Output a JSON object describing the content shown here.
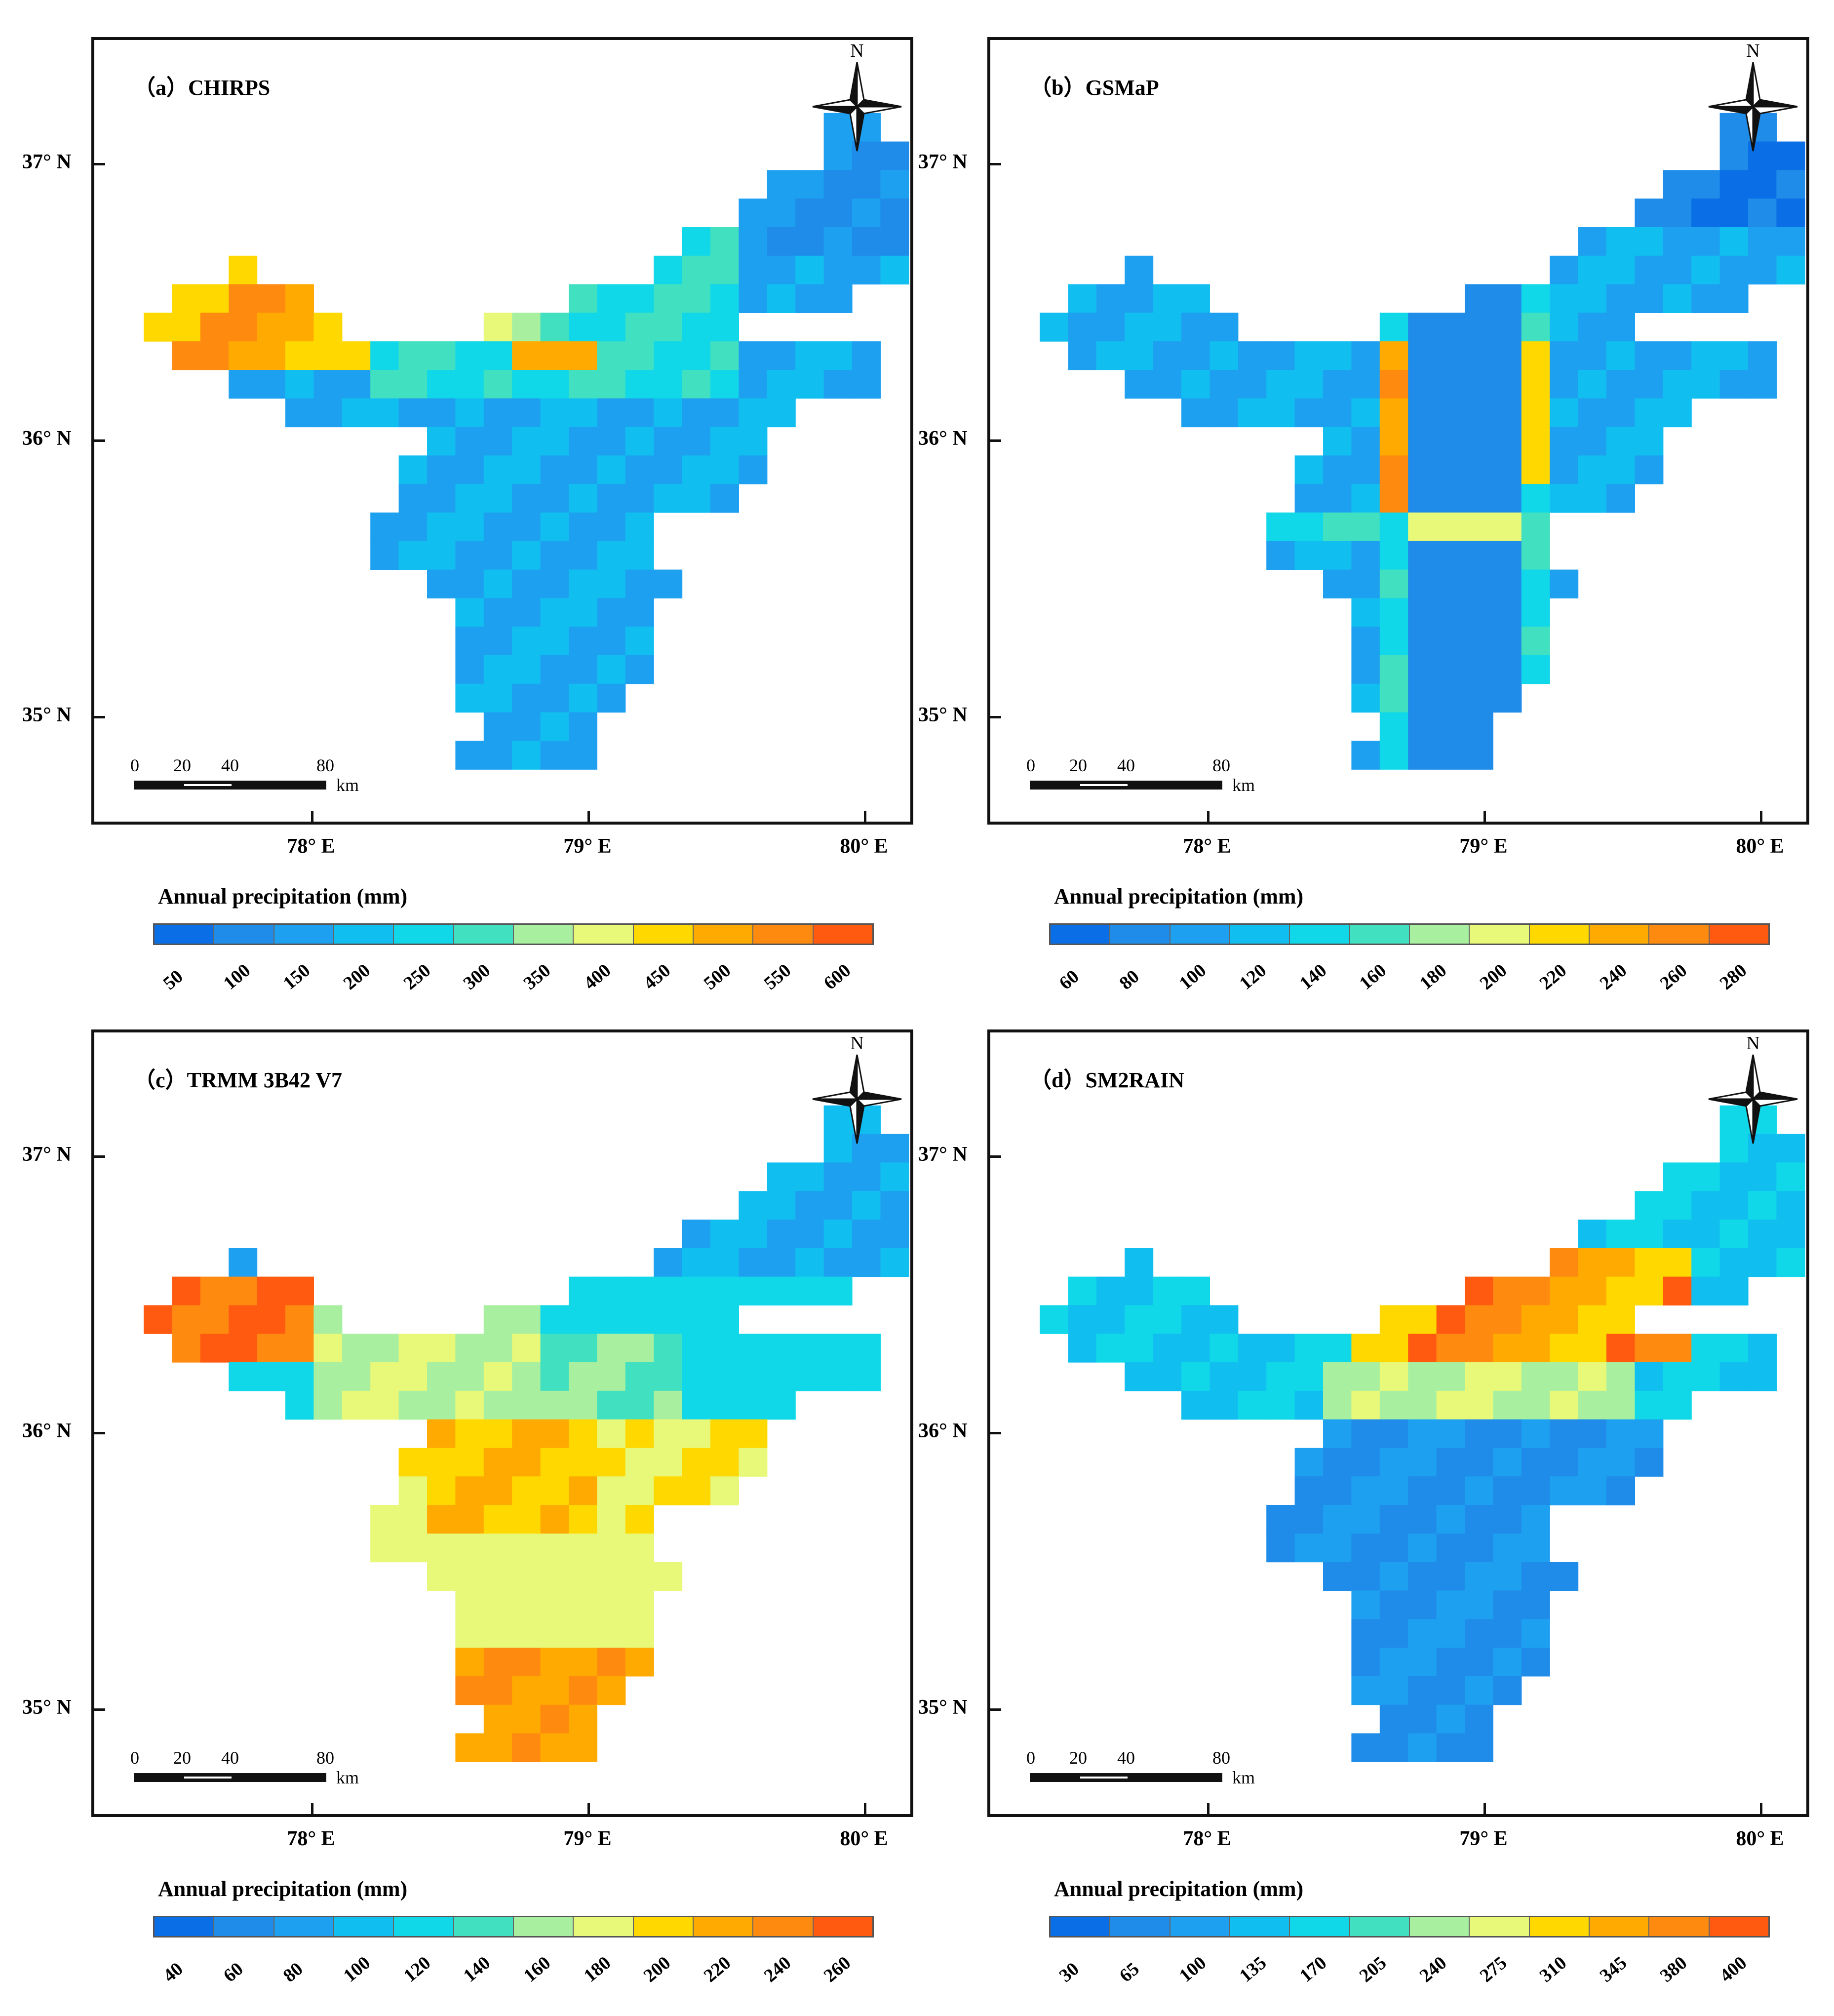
{
  "figure": {
    "panels": [
      {
        "id": "a",
        "title": "（a）CHIRPS",
        "legend_title": "Annual precipitation (mm)",
        "legend_labels": [
          "50",
          "100",
          "150",
          "200",
          "250",
          "300",
          "350",
          "400",
          "450",
          "500",
          "550",
          "600"
        ],
        "legend_colors": [
          "#0a6ee6",
          "#1e8ce8",
          "#1ea0f0",
          "#10bff0",
          "#10d8e8",
          "#40e0c0",
          "#a8f0a0",
          "#e8f878",
          "#ffd800",
          "#ffaa00",
          "#ff8a10",
          "#ff5a10"
        ],
        "pattern": "west_wet"
      },
      {
        "id": "b",
        "title": "（b）GSMaP",
        "legend_title": "Annual precipitation (mm)",
        "legend_labels": [
          "60",
          "80",
          "100",
          "120",
          "140",
          "160",
          "180",
          "200",
          "220",
          "240",
          "260",
          "280"
        ],
        "legend_colors": [
          "#0a6ee6",
          "#1e8ce8",
          "#1ea0f0",
          "#10bff0",
          "#10d8e8",
          "#40e0c0",
          "#a8f0a0",
          "#e8f878",
          "#ffd800",
          "#ffaa00",
          "#ff8a10",
          "#ff5a10"
        ],
        "pattern": "grid_lines"
      },
      {
        "id": "c",
        "title": "（c）TRMM 3B42 V7",
        "legend_title": "Annual precipitation (mm)",
        "legend_labels": [
          "40",
          "60",
          "80",
          "100",
          "120",
          "140",
          "160",
          "180",
          "200",
          "220",
          "240",
          "260"
        ],
        "legend_colors": [
          "#0a6ee6",
          "#1e8ce8",
          "#1ea0f0",
          "#10bff0",
          "#10d8e8",
          "#40e0c0",
          "#a8f0a0",
          "#e8f878",
          "#ffd800",
          "#ffaa00",
          "#ff8a10",
          "#ff5a10"
        ],
        "pattern": "south_wet"
      },
      {
        "id": "d",
        "title": "（d）SM2RAIN",
        "legend_title": "Annual precipitation (mm)",
        "legend_labels": [
          "30",
          "65",
          "100",
          "135",
          "170",
          "205",
          "240",
          "275",
          "310",
          "345",
          "380",
          "400"
        ],
        "legend_colors": [
          "#0a6ee6",
          "#1e8ce8",
          "#1ea0f0",
          "#10bff0",
          "#10d8e8",
          "#40e0c0",
          "#a8f0a0",
          "#e8f878",
          "#ffd800",
          "#ffaa00",
          "#ff8a10",
          "#ff5a10"
        ],
        "pattern": "north_wet"
      }
    ],
    "lat_labels": [
      "37° N",
      "36° N",
      "35° N"
    ],
    "lon_labels": [
      "78° E",
      "79° E",
      "80° E"
    ],
    "scale_numbers": [
      "0",
      "20",
      "40",
      "80"
    ],
    "scale_unit": "km",
    "north_label": "N"
  }
}
